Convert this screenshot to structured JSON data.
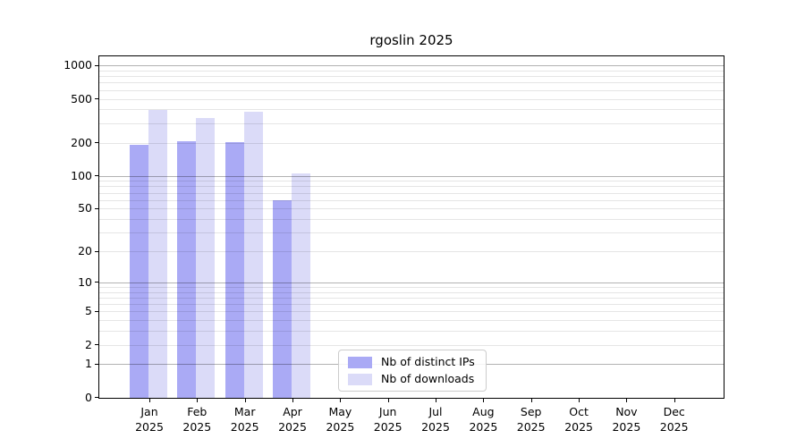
{
  "title": "rgoslin 2025",
  "colors": {
    "distinct_ips": "#aaaaf5",
    "downloads": "#dbdbf8",
    "grid_decade": "rgba(0,0,0,0.30)",
    "grid_minor": "rgba(0,0,0,0.10)",
    "axis": "#000000",
    "background": "#ffffff"
  },
  "legend": {
    "items": [
      {
        "label": "Nb of distinct IPs",
        "color_key": "distinct_ips"
      },
      {
        "label": "Nb of downloads",
        "color_key": "downloads"
      }
    ]
  },
  "chart_data": {
    "type": "bar",
    "title": "rgoslin 2025",
    "scale": "log10(1+y)",
    "categories": [
      "Jan 2025",
      "Feb 2025",
      "Mar 2025",
      "Apr 2025",
      "May 2025",
      "Jun 2025",
      "Jul 2025",
      "Aug 2025",
      "Sep 2025",
      "Oct 2025",
      "Nov 2025",
      "Dec 2025"
    ],
    "months": [
      "Jan",
      "Feb",
      "Mar",
      "Apr",
      "May",
      "Jun",
      "Jul",
      "Aug",
      "Sep",
      "Oct",
      "Nov",
      "Dec"
    ],
    "year": "2025",
    "series": [
      {
        "name": "Nb of distinct IPs",
        "values": [
          193,
          206,
          204,
          60,
          null,
          null,
          null,
          null,
          null,
          null,
          null,
          null
        ]
      },
      {
        "name": "Nb of downloads",
        "values": [
          399,
          336,
          385,
          105,
          null,
          null,
          null,
          null,
          null,
          null,
          null,
          null
        ]
      }
    ],
    "y_ticks": [
      0,
      1,
      2,
      5,
      10,
      20,
      50,
      100,
      200,
      500,
      1000
    ],
    "ylim": [
      0,
      1230
    ],
    "xlabel": "",
    "ylabel": "",
    "grid": "on",
    "legend_position": "inside-bottom-center"
  }
}
